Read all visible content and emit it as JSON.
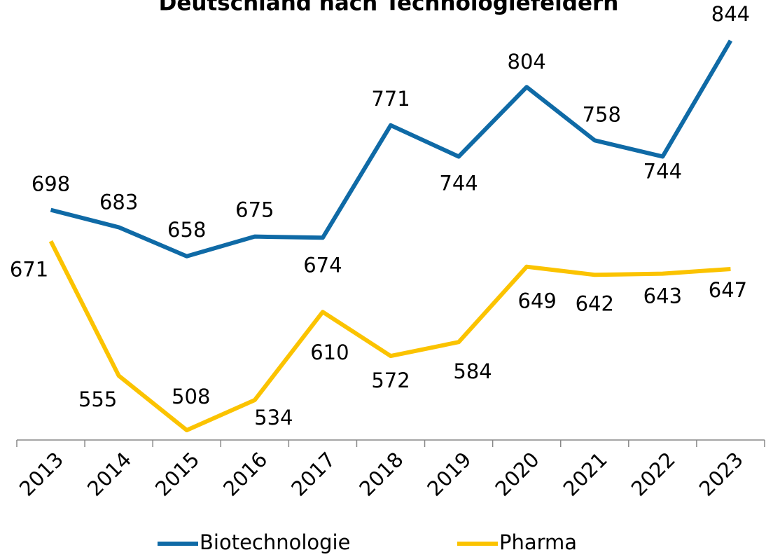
{
  "chart_data": {
    "type": "line",
    "title": "Deutschland nach Technologiefeldern",
    "categories": [
      "2013",
      "2014",
      "2015",
      "2016",
      "2017",
      "2018",
      "2019",
      "2020",
      "2021",
      "2022",
      "2023"
    ],
    "series": [
      {
        "name": "Biotechnologie",
        "color": "#0f6aa6",
        "values": [
          698,
          683,
          658,
          675,
          674,
          771,
          744,
          804,
          758,
          744,
          844
        ]
      },
      {
        "name": "Pharma",
        "color": "#fbc300",
        "values": [
          671,
          555,
          508,
          534,
          610,
          572,
          584,
          649,
          642,
          643,
          647
        ]
      }
    ],
    "legend": "bottom"
  }
}
